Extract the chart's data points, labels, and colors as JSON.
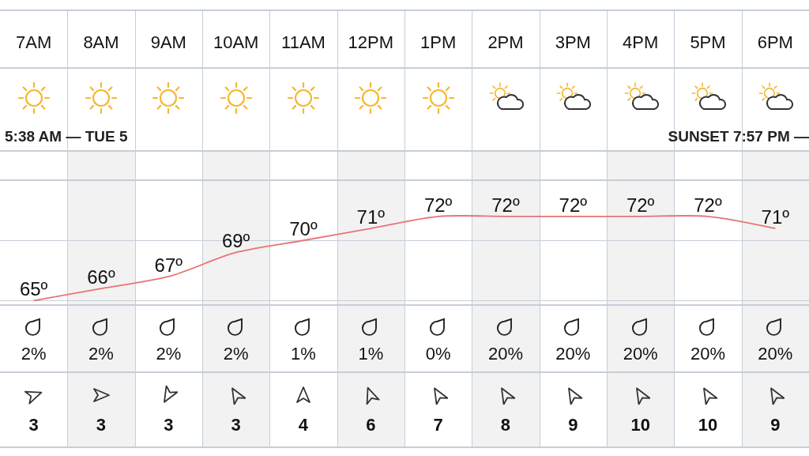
{
  "chart_data": [
    {
      "type": "line",
      "categories": [
        "7AM",
        "8AM",
        "9AM",
        "10AM",
        "11AM",
        "12PM",
        "1PM",
        "2PM",
        "3PM",
        "4PM",
        "5PM",
        "6PM"
      ],
      "series": [
        {
          "color": "#e87474",
          "values": [
            65,
            66,
            67,
            69,
            70,
            71,
            72,
            72,
            72,
            72,
            72,
            71
          ],
          "value_labels": [
            "65º",
            "66º",
            "67º",
            "69º",
            "70º",
            "71º",
            "72º",
            "72º",
            "72º",
            "72º",
            "72º",
            "71º"
          ]
        }
      ],
      "ylim": [
        64.7,
        77.5
      ],
      "yticks": [
        {
          "value": 65,
          "label": null
        },
        {
          "value": 70,
          "label": null
        },
        {
          "value": 75,
          "label": null
        }
      ],
      "grid": "y",
      "marker": "none",
      "annotations": [
        "5:38 AM — TUE 5",
        "SUNSET 7:57 PM —"
      ]
    },
    {
      "type": "other",
      "categories": [
        null,
        null,
        null,
        null,
        null,
        null,
        null,
        null,
        null,
        null,
        null,
        null
      ],
      "values": [
        2,
        2,
        2,
        2,
        1,
        1,
        0,
        20,
        20,
        20,
        20,
        20
      ],
      "value_labels": [
        "2%",
        "2%",
        "2%",
        "2%",
        "1%",
        "1%",
        "0%",
        "20%",
        "20%",
        "20%",
        "20%",
        "20%"
      ]
    },
    {
      "type": "other",
      "categories": [
        null,
        null,
        null,
        null,
        null,
        null,
        null,
        null,
        null,
        null,
        null,
        null
      ],
      "values": [
        3,
        3,
        3,
        3,
        4,
        6,
        7,
        8,
        9,
        10,
        10,
        9
      ],
      "data_labels": true
    }
  ]
}
